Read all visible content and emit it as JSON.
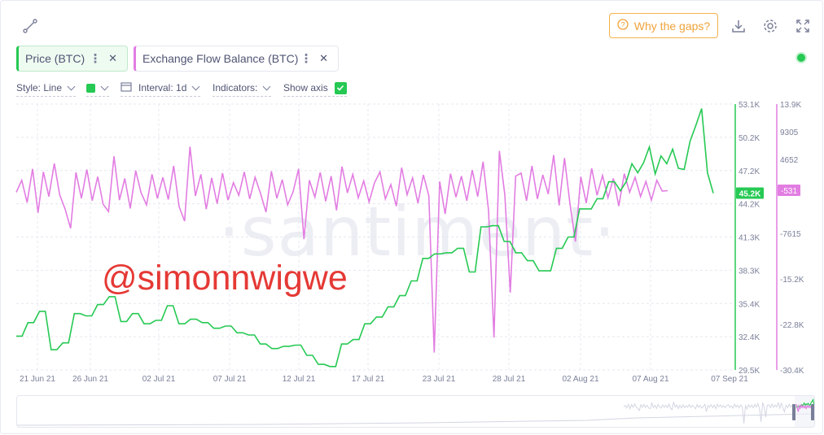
{
  "toolbar": {
    "why_gaps_label": "Why the gaps?",
    "icons": [
      "line-tool-icon",
      "help-circle-icon",
      "download-icon",
      "gear-icon",
      "fullscreen-icon"
    ]
  },
  "metrics": [
    {
      "label": "Price (BTC)",
      "color": "#26c953"
    },
    {
      "label": "Exchange Flow Balance (BTC)",
      "color": "#e27de2"
    }
  ],
  "options": {
    "style_label": "Style: Line",
    "interval_label": "Interval: 1d",
    "indicators_label": "Indicators:",
    "show_axis_label": "Show axis",
    "show_axis_checked": true
  },
  "watermark": "·santiment·",
  "handle": "@simonnwigwe",
  "colors": {
    "price": "#26c953",
    "flow": "#e27de2",
    "accent": "#f0a33a",
    "status": "#26c953"
  },
  "chart_data": {
    "type": "line",
    "x_tick_labels": [
      "21 Jun 21",
      "26 Jun 21",
      "02 Jul 21",
      "07 Jul 21",
      "12 Jul 21",
      "17 Jul 21",
      "23 Jul 21",
      "28 Jul 21",
      "02 Aug 21",
      "07 Aug 21",
      "07 Sep 21"
    ],
    "price_axis": {
      "ticks": [
        "53.1K",
        "50.2K",
        "47.2K",
        "44.2K",
        "41.3K",
        "38.3K",
        "35.4K",
        "32.4K",
        "29.5K"
      ],
      "range": [
        29500,
        53100
      ],
      "current_label": "45.2K"
    },
    "flow_axis": {
      "ticks": [
        "13.9K",
        "9305",
        "4652",
        "",
        "-7615",
        "-15.2K",
        "-22.8K",
        "-30.4K"
      ],
      "range": [
        -30400,
        13900
      ],
      "current_label": "-531"
    },
    "series": [
      {
        "name": "Price (BTC)",
        "axis": "price",
        "values": [
          32500,
          32500,
          33700,
          33700,
          34700,
          34700,
          31300,
          31300,
          31900,
          31900,
          34500,
          34500,
          34300,
          34300,
          35300,
          35300,
          36000,
          36000,
          33800,
          33800,
          34500,
          34500,
          33600,
          33600,
          33900,
          33900,
          35200,
          35200,
          33600,
          33600,
          34000,
          34000,
          33700,
          33700,
          33200,
          33200,
          33400,
          33400,
          32800,
          32800,
          32600,
          32600,
          31800,
          31800,
          31400,
          31400,
          31600,
          31600,
          31700,
          31700,
          30800,
          30800,
          30000,
          30000,
          29800,
          29800,
          31800,
          31800,
          32200,
          32200,
          33600,
          33600,
          34200,
          34200,
          35100,
          35100,
          36100,
          36100,
          37400,
          37400,
          39400,
          39400,
          39800,
          39800,
          39900,
          39900,
          40300,
          40300,
          38200,
          38200,
          42200,
          42200,
          42300,
          42300,
          40900,
          40900,
          39900,
          39900,
          39200,
          39200,
          38300,
          38300,
          38300,
          40300,
          40300,
          41300,
          41300,
          43800,
          43800,
          43800,
          44700,
          44700,
          46200,
          46200,
          45400,
          46200,
          47800,
          47000,
          47900,
          49300,
          46900,
          48500,
          47800,
          49100,
          47400,
          47300,
          49800,
          51200,
          52700,
          47000,
          45200
        ]
      },
      {
        "name": "Exchange Flow Balance (BTC)",
        "axis": "flow",
        "values": [
          -800,
          1200,
          -2500,
          3100,
          -4200,
          2600,
          -1500,
          4000,
          -1200,
          -3600,
          -6800,
          2500,
          -1800,
          3000,
          -2200,
          1800,
          -2800,
          -4000,
          5200,
          -2100,
          1500,
          -3500,
          2800,
          -900,
          -2900,
          2200,
          -1800,
          1700,
          -2000,
          3600,
          -3200,
          -5600,
          6800,
          -1400,
          2200,
          -3600,
          1600,
          -2700,
          2400,
          -2100,
          800,
          -1300,
          2600,
          -1900,
          1700,
          -1000,
          -4100,
          2700,
          -1800,
          1300,
          -2900,
          -700,
          3100,
          -8600,
          1200,
          -1600,
          2500,
          -2300,
          1900,
          -3800,
          3500,
          -900,
          2200,
          -1700,
          1100,
          -2400,
          800,
          2600,
          -1900,
          500,
          -3100,
          3300,
          -1200,
          1600,
          -2600,
          2100,
          -1400,
          -27500,
          1000,
          -4400,
          2300,
          -1600,
          1900,
          -2200,
          2900,
          -1500,
          4300,
          -3800,
          -25000,
          6100,
          -1200,
          -17500,
          1900,
          2400,
          -2200,
          3600,
          -1900,
          2100,
          -1100,
          5400,
          -3000,
          4900,
          -2700,
          -9000,
          1800,
          -2600,
          3200,
          -1300,
          2000,
          -1700,
          1500,
          -3100,
          2300,
          -800,
          1700,
          -1500,
          1000,
          -2100,
          1200,
          -600,
          -531
        ]
      }
    ],
    "grid": true,
    "legend": "top-left"
  }
}
